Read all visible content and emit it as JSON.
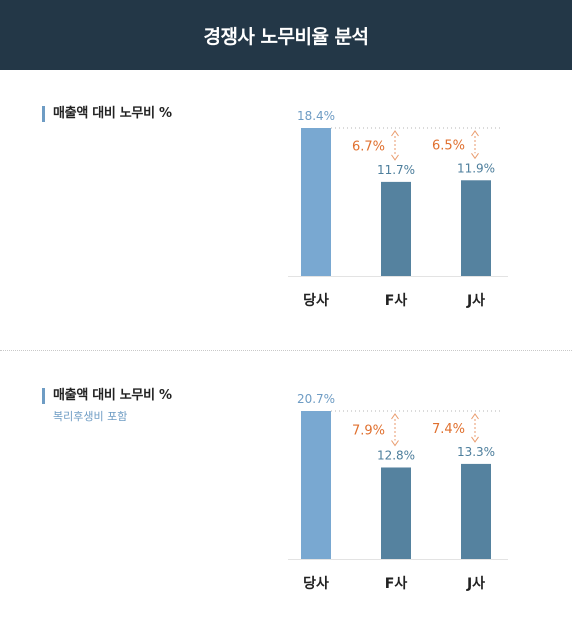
{
  "header": {
    "title": "경쟁사 노무비율 분석"
  },
  "colors": {
    "header_bg": "#233747",
    "highlight_bar": "#79a8d1",
    "bar": "#55829f",
    "gap": "#e0702f",
    "value_label_light": "#6e9cc4",
    "value_label_dark": "#4d7e9c"
  },
  "sections": [
    {
      "title": "매출액 대비 노무비 %",
      "subtitle": ""
    },
    {
      "title": "매출액 대비 노무비 %",
      "subtitle": "복리후생비 포함"
    }
  ],
  "chart_data": [
    {
      "type": "bar",
      "categories": [
        "당사",
        "F사",
        "J사"
      ],
      "values": [
        18.4,
        11.7,
        11.9
      ],
      "value_labels": [
        "18.4%",
        "11.7%",
        "11.9%"
      ],
      "annotations": [
        {
          "category": "F사",
          "text": "6.7%"
        },
        {
          "category": "J사",
          "text": "6.5%"
        }
      ]
    },
    {
      "type": "bar",
      "categories": [
        "당사",
        "F사",
        "J사"
      ],
      "values": [
        20.7,
        12.8,
        13.3
      ],
      "value_labels": [
        "20.7%",
        "12.8%",
        "13.3%"
      ],
      "annotations": [
        {
          "category": "F사",
          "text": "7.9%"
        },
        {
          "category": "J사",
          "text": "7.4%"
        }
      ]
    }
  ]
}
